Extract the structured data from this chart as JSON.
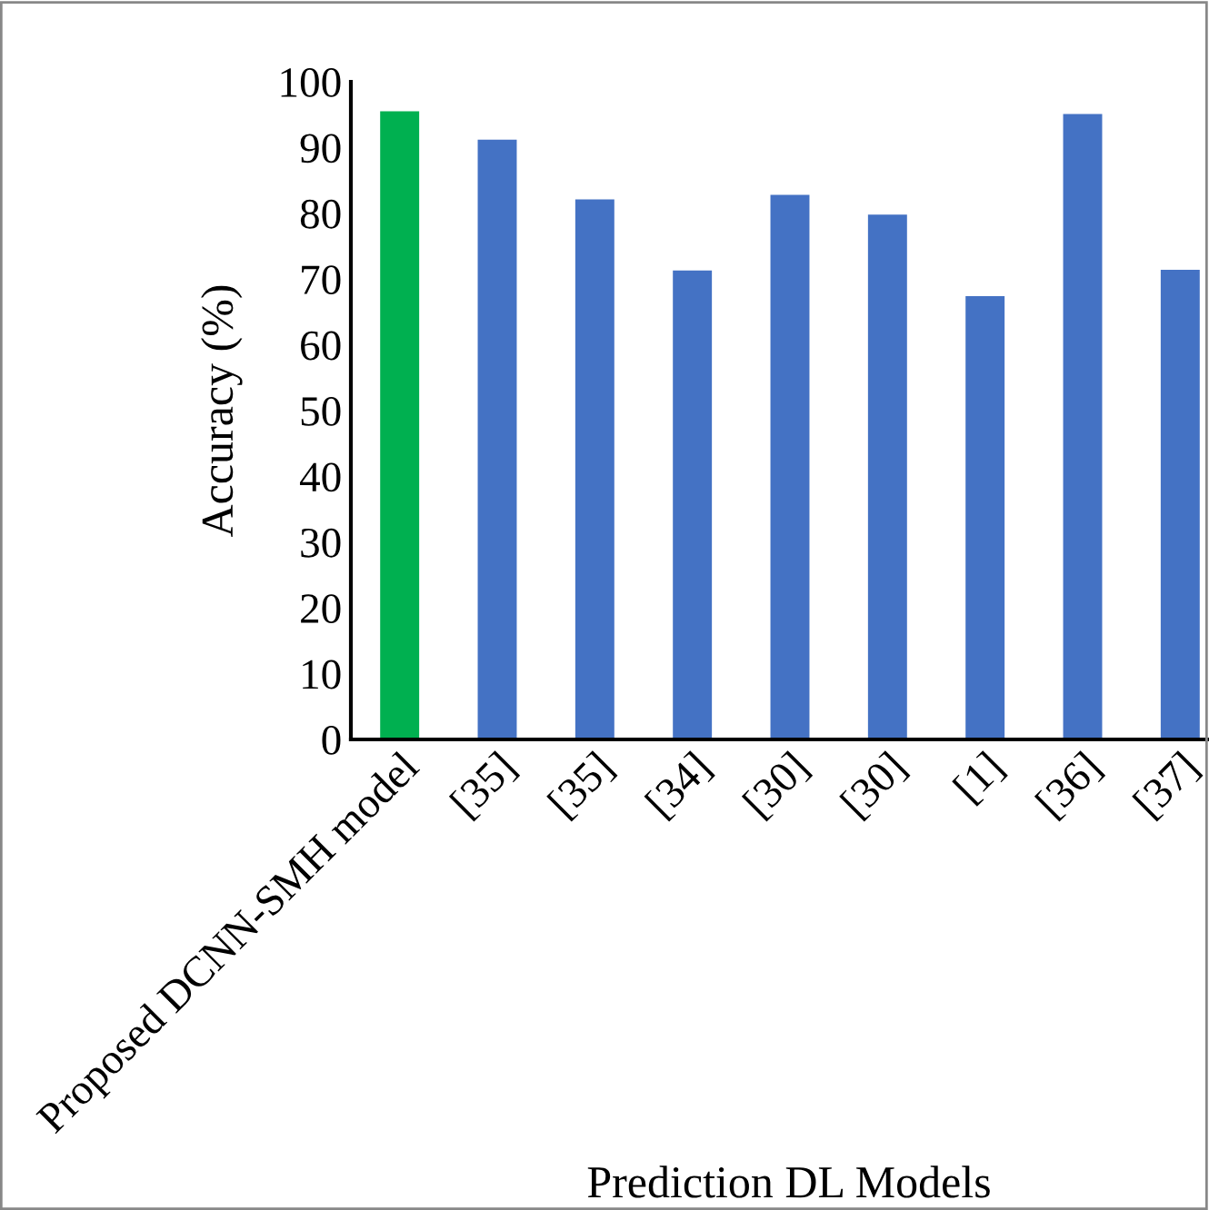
{
  "chart_data": {
    "type": "bar",
    "xlabel": "Prediction DL Models",
    "ylabel": "Accuracy (%)",
    "categories": [
      "Proposed DCNN-SMH model",
      "[35]",
      "[35]",
      "[34]",
      "[30]",
      "[30]",
      "[1]",
      "[36]",
      "[37]"
    ],
    "values": [
      95.5,
      91.2,
      82.1,
      71.3,
      82.8,
      79.8,
      67.4,
      95.1,
      71.4
    ],
    "colors": [
      "#00b050",
      "#4472c4",
      "#4472c4",
      "#4472c4",
      "#4472c4",
      "#4472c4",
      "#4472c4",
      "#4472c4",
      "#4472c4"
    ],
    "ylim": [
      0,
      100
    ],
    "yticks": [
      0,
      10,
      20,
      30,
      40,
      50,
      60,
      70,
      80,
      90,
      100
    ],
    "grid": false,
    "legend": false
  }
}
